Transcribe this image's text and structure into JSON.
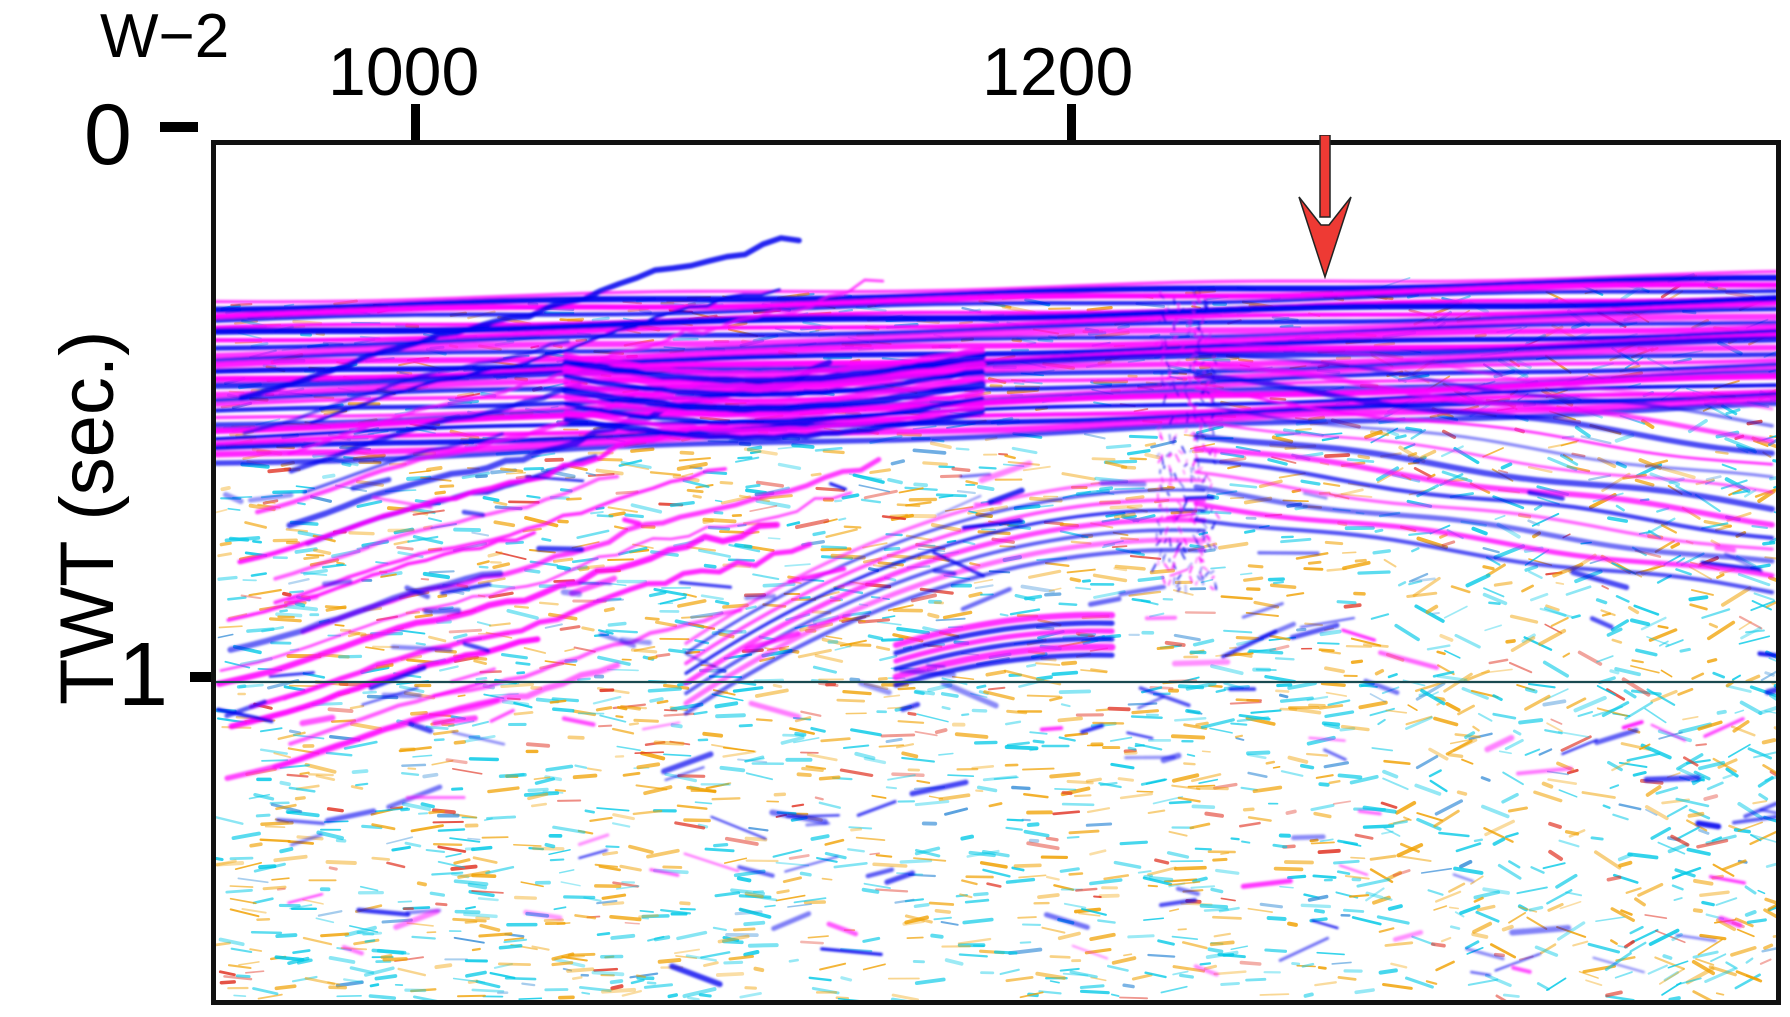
{
  "figure": {
    "line_name": "W−2",
    "trace_labels": [
      "1000",
      "1200"
    ],
    "time_labels": [
      "0",
      "1"
    ],
    "yaxis_title": "TWT (sec.)"
  },
  "colors": {
    "positive_strong": "#ff00ff",
    "negative_strong": "#0000ee",
    "weak_cool": "#00c8e6",
    "weak_warm": "#f0a000",
    "marker": "#ee3a34",
    "frame": "#111111"
  },
  "annotations": {
    "marker_icon": "red-down-arrow-icon",
    "reference_line": "horizontal line at 1 sec"
  }
}
